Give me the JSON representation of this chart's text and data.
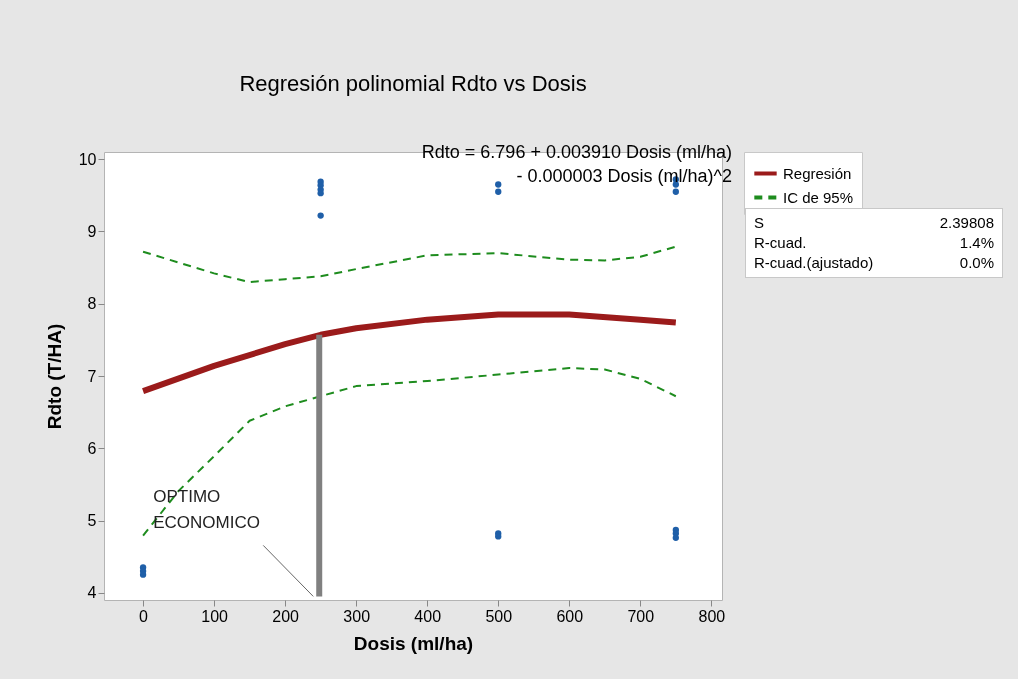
{
  "chart_data": {
    "type": "scatter",
    "title": "Regresión polinomial Rdto vs Dosis",
    "xlabel": "Dosis (ml/ha)",
    "ylabel": "Rdto (T/HA)",
    "xlim": [
      -55,
      815
    ],
    "ylim": [
      3.9,
      10.1
    ],
    "xticks": [
      0,
      100,
      200,
      300,
      400,
      500,
      600,
      700,
      800
    ],
    "yticks": [
      4,
      5,
      6,
      7,
      8,
      9,
      10
    ],
    "grid": false,
    "legend": "top right",
    "annotations": [
      "Rdto = 6.796 + 0.003910 Dosis (ml/ha)\n- 0.000003 Dosis (ml/ha)^2",
      {
        "text": "OPTIMO\nECONOMICO",
        "x": 248,
        "y": 3.95
      },
      "S 2.39808",
      "R-cuad. 1.4%",
      "R-cuad.(ajustado) 0.0%"
    ],
    "series": [
      {
        "type": "line",
        "color": "#808080",
        "line_style": "solid",
        "x": [
          248,
          248
        ],
        "values": [
          3.95,
          7.57
        ]
      },
      {
        "color": "#1f5fa8",
        "marker": "circle",
        "x": [
          0,
          0,
          0,
          250,
          250,
          250,
          250,
          250,
          500,
          500,
          500,
          500,
          750,
          750,
          750,
          750,
          750,
          750
        ],
        "values": [
          4.35,
          4.3,
          4.25,
          9.69,
          9.64,
          9.58,
          9.53,
          9.22,
          9.65,
          9.55,
          4.82,
          4.78,
          9.72,
          9.65,
          9.55,
          4.87,
          4.82,
          4.76
        ]
      },
      {
        "name": "Regresión",
        "type": "line",
        "color": "#9b1b1b",
        "line_style": "solid",
        "x": [
          0,
          100,
          200,
          250,
          300,
          400,
          500,
          600,
          700,
          750
        ],
        "values": [
          6.79,
          7.14,
          7.44,
          7.57,
          7.66,
          7.78,
          7.85,
          7.85,
          7.78,
          7.74
        ]
      },
      {
        "name": "IC de 95%",
        "type": "line",
        "color": "#1e8c1e",
        "line_style": "dashed",
        "x": [
          0,
          100,
          150,
          200,
          250,
          300,
          400,
          500,
          600,
          650,
          700,
          750
        ],
        "values": [
          8.72,
          8.42,
          8.3,
          8.34,
          8.38,
          8.48,
          8.67,
          8.7,
          8.61,
          8.6,
          8.65,
          8.79
        ]
      },
      {
        "type": "line",
        "color": "#1e8c1e",
        "line_style": "dashed",
        "x": [
          0,
          50,
          100,
          150,
          200,
          250,
          300,
          400,
          500,
          600,
          650,
          700,
          750
        ],
        "values": [
          4.79,
          5.41,
          5.89,
          6.38,
          6.58,
          6.72,
          6.86,
          6.93,
          7.02,
          7.11,
          7.09,
          6.96,
          6.72
        ]
      }
    ]
  }
}
